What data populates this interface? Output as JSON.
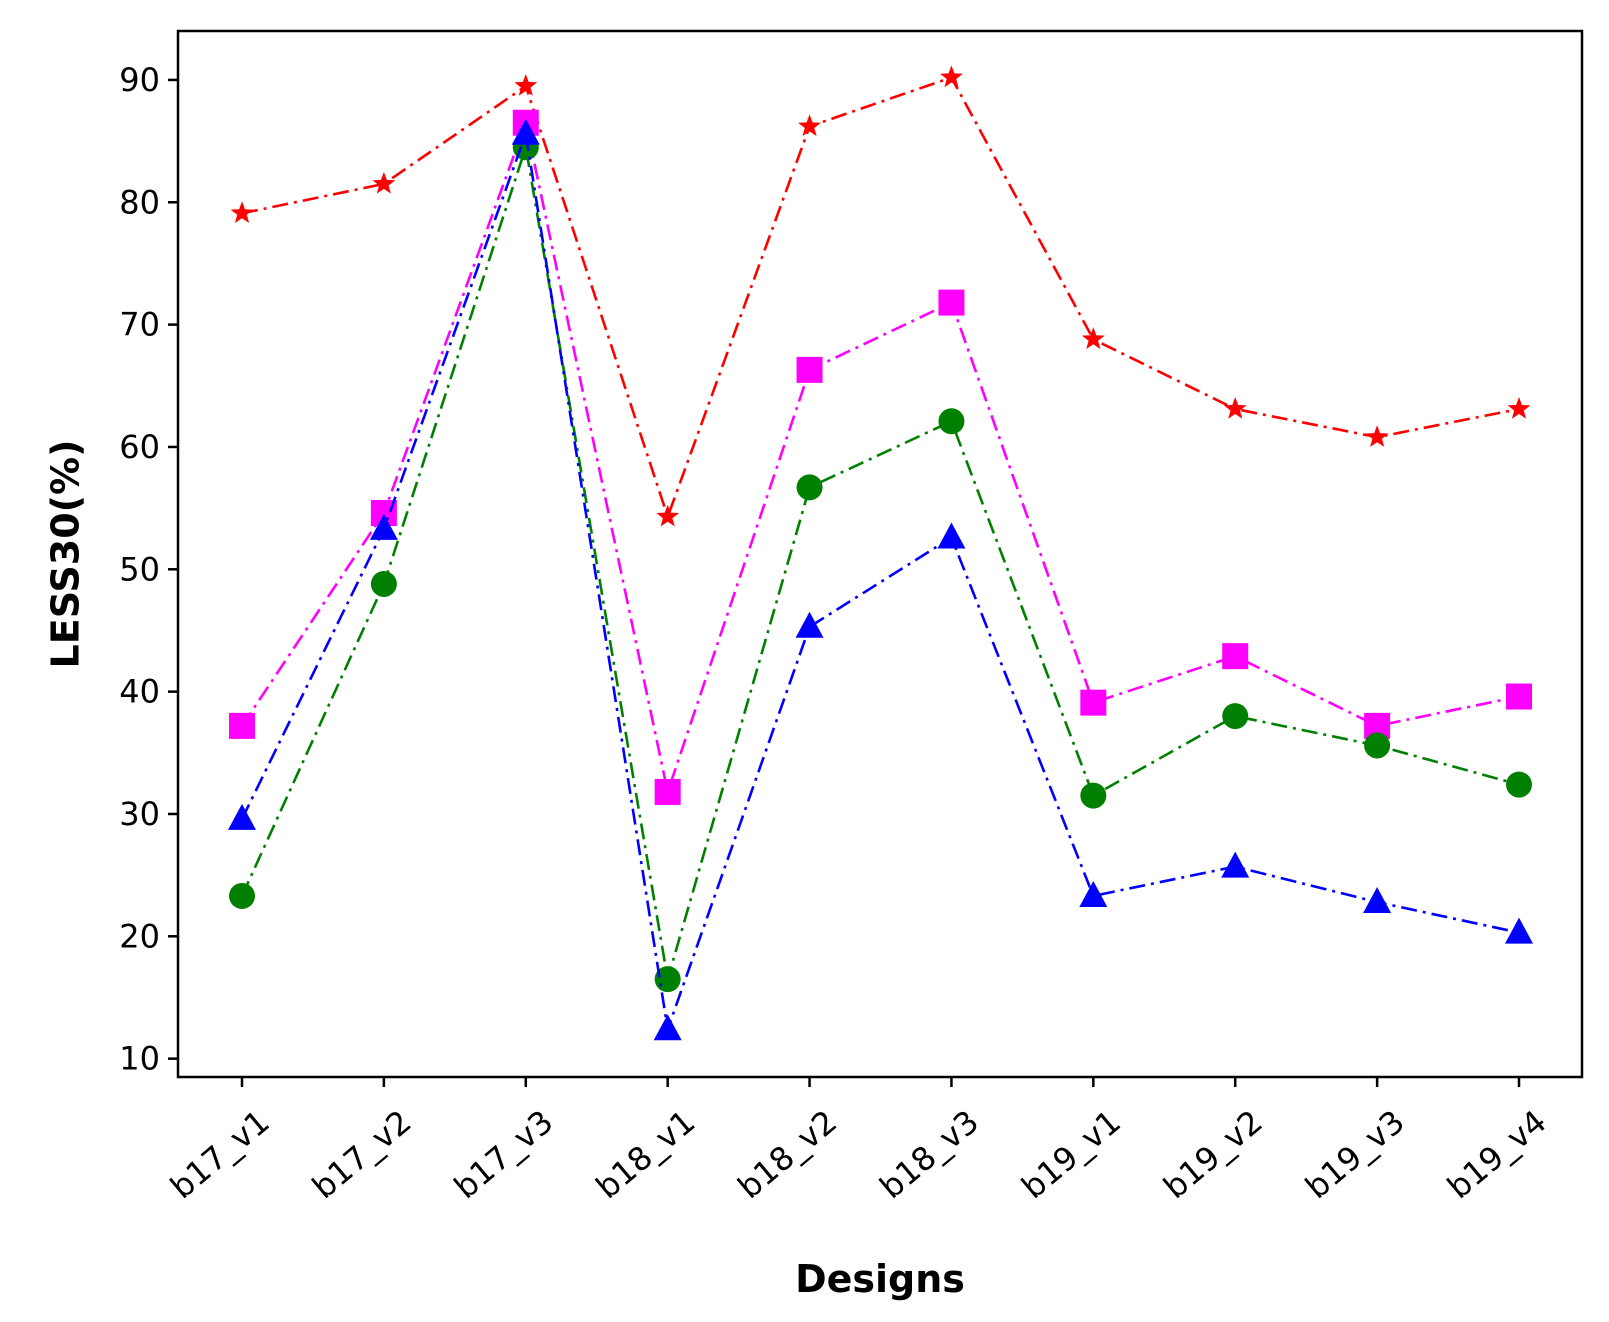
{
  "chart_data": {
    "type": "line",
    "xlabel": "Designs",
    "ylabel": "LESS30(%)",
    "categories": [
      "b17_v1",
      "b17_v2",
      "b17_v3",
      "b18_v1",
      "b18_v2",
      "b18_v3",
      "b19_v1",
      "b19_v2",
      "b19_v3",
      "b19_v4"
    ],
    "yticks": [
      10,
      20,
      30,
      40,
      50,
      60,
      70,
      80,
      90
    ],
    "ylim": [
      8.5,
      94
    ],
    "grid": false,
    "series": [
      {
        "color": "#ff0000",
        "marker": "star",
        "linestyle": "dashdot",
        "values": [
          79.1,
          81.5,
          89.5,
          54.3,
          86.2,
          90.2,
          68.8,
          63.1,
          60.8,
          63.1
        ]
      },
      {
        "color": "#ff00ff",
        "marker": "square",
        "linestyle": "dashdot",
        "values": [
          37.2,
          54.6,
          86.5,
          31.8,
          66.3,
          71.8,
          39.1,
          42.9,
          37.2,
          39.6
        ]
      },
      {
        "color": "#008000",
        "marker": "circle",
        "linestyle": "dashdot",
        "values": [
          23.3,
          48.8,
          84.5,
          16.5,
          56.7,
          62.1,
          31.5,
          38.0,
          35.6,
          32.4
        ]
      },
      {
        "color": "#0000ff",
        "marker": "triangle",
        "linestyle": "dashdot",
        "values": [
          29.6,
          53.3,
          85.6,
          12.4,
          45.3,
          52.6,
          23.3,
          25.7,
          22.8,
          20.3
        ]
      }
    ]
  }
}
